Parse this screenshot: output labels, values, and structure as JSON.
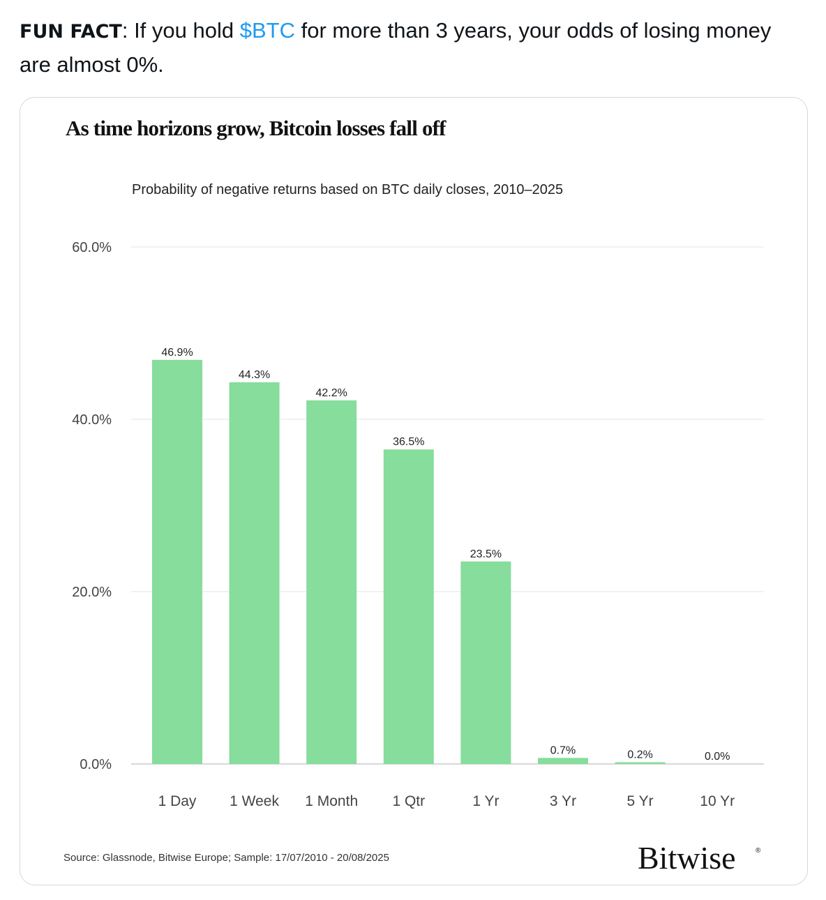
{
  "tweet": {
    "label": "FUN FACT",
    "text_before": ": If you hold ",
    "cashtag": "$BTC",
    "text_after": " for more than 3 years, your odds of losing money are almost 0%."
  },
  "chart_data": {
    "type": "bar",
    "title": "As time horizons grow, Bitcoin losses fall off",
    "subtitle": "Probability of negative returns based on BTC daily closes, 2010–2025",
    "categories": [
      "1 Day",
      "1 Week",
      "1 Month",
      "1 Qtr",
      "1 Yr",
      "3 Yr",
      "5 Yr",
      "10 Yr"
    ],
    "values": [
      46.9,
      44.3,
      42.2,
      36.5,
      23.5,
      0.7,
      0.2,
      0.0
    ],
    "data_labels": [
      "46.9%",
      "44.3%",
      "42.2%",
      "36.5%",
      "23.5%",
      "0.7%",
      "0.2%",
      "0.0%"
    ],
    "yticks": [
      0,
      20,
      40,
      60
    ],
    "ytick_labels": [
      "0.0%",
      "20.0%",
      "40.0%",
      "60.0%"
    ],
    "ylim": [
      0,
      60
    ],
    "xlabel": "",
    "ylabel": "",
    "grid": true,
    "bar_color": "#86dd9c",
    "source": "Source: Glassnode, Bitwise Europe; Sample: 17/07/2010 - 20/08/2025",
    "brand": "Bitwise"
  }
}
